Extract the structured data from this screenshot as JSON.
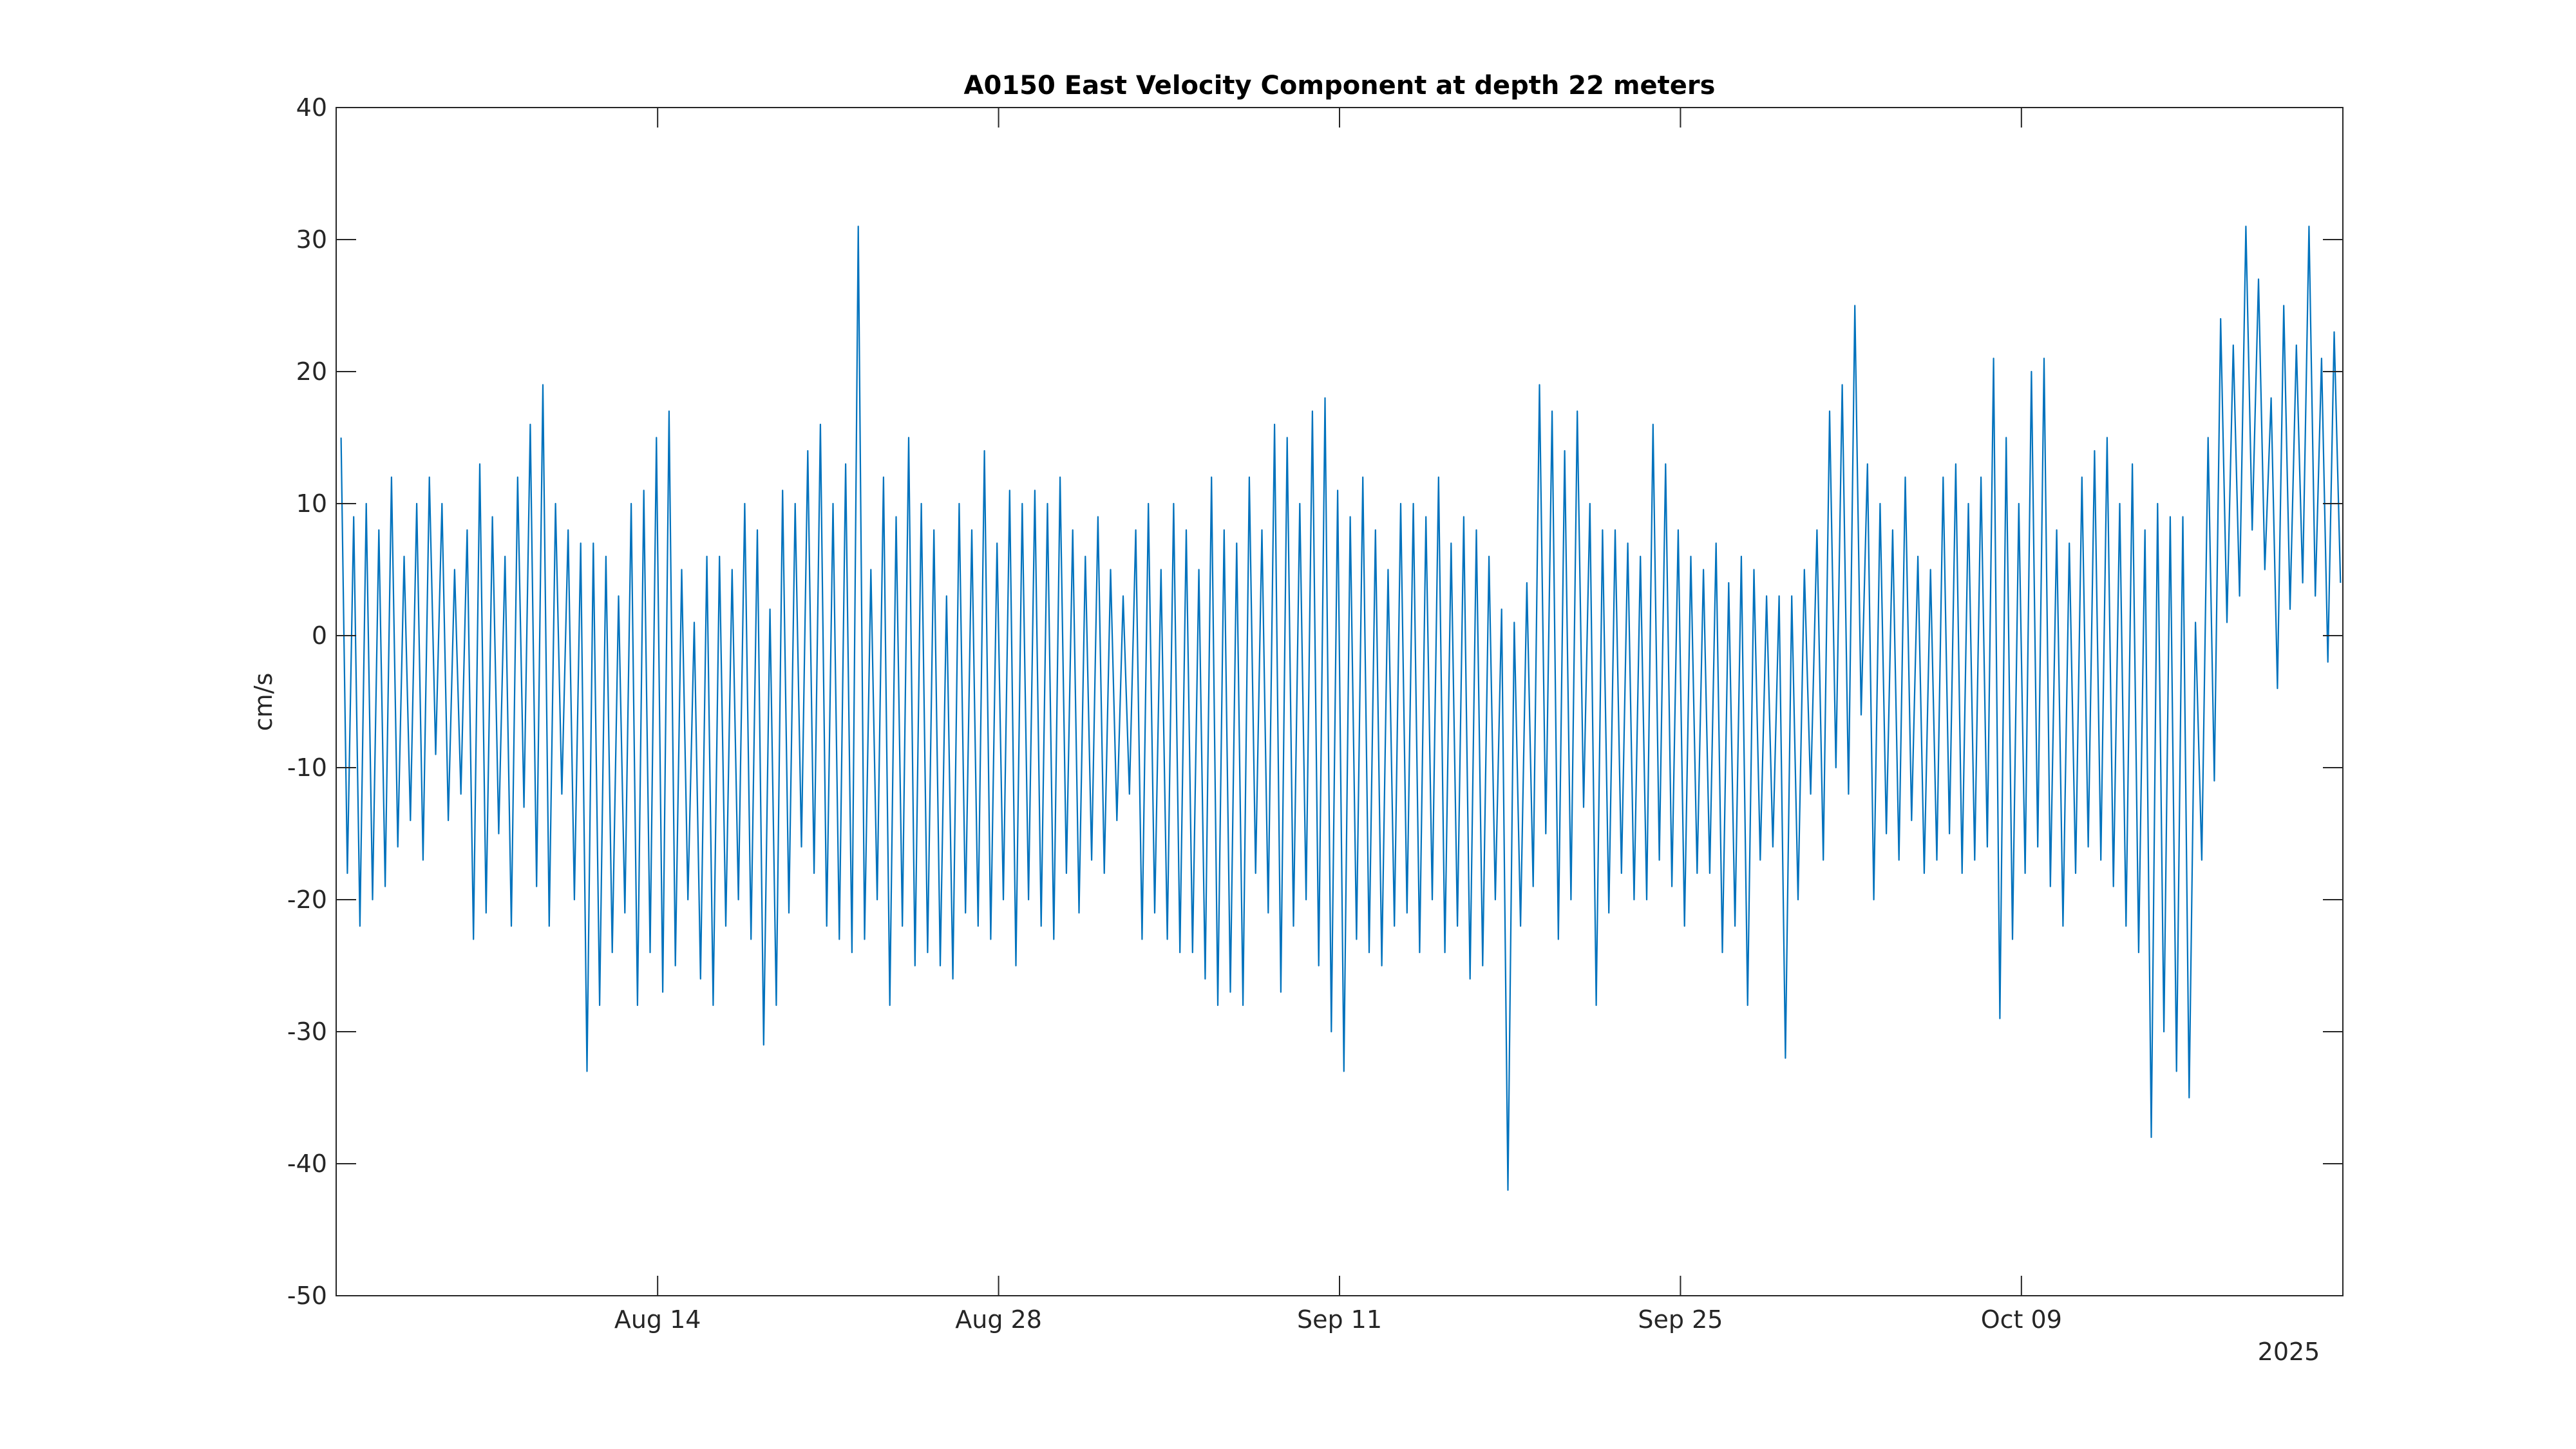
{
  "chart_data": {
    "type": "line",
    "title": "A0150 East Velocity Component at depth 22 meters",
    "xlabel": "",
    "ylabel": "cm/s",
    "x_units": "days since 2025-08-01",
    "x_secondary_label": "2025",
    "xlim": [
      -0.2,
      82.2
    ],
    "ylim": [
      -50,
      40
    ],
    "yticks": [
      -50,
      -40,
      -30,
      -20,
      -10,
      0,
      10,
      20,
      30,
      40
    ],
    "xticks": [
      {
        "value": 13,
        "label": "Aug 14"
      },
      {
        "value": 27,
        "label": "Aug 28"
      },
      {
        "value": 41,
        "label": "Sep 11"
      },
      {
        "value": 55,
        "label": "Sep 25"
      },
      {
        "value": 69,
        "label": "Oct 09"
      }
    ],
    "grid": false,
    "line_color": "#0072bd",
    "series": [
      {
        "name": "East velocity",
        "x_start": 0,
        "x_step": 0.259,
        "values": [
          15,
          -18,
          9,
          -22,
          10,
          -20,
          8,
          -19,
          12,
          -16,
          6,
          -14,
          10,
          -17,
          12,
          -9,
          10,
          -14,
          5,
          -12,
          8,
          -23,
          13,
          -21,
          9,
          -15,
          6,
          -22,
          12,
          -13,
          16,
          -19,
          19,
          -22,
          10,
          -12,
          8,
          -20,
          7,
          -33,
          7,
          -28,
          6,
          -24,
          3,
          -21,
          10,
          -28,
          11,
          -24,
          15,
          -27,
          17,
          -25,
          5,
          -20,
          1,
          -26,
          6,
          -28,
          6,
          -22,
          5,
          -20,
          10,
          -23,
          8,
          -31,
          2,
          -28,
          11,
          -21,
          10,
          -16,
          14,
          -18,
          16,
          -22,
          10,
          -23,
          13,
          -24,
          31,
          -23,
          5,
          -20,
          12,
          -28,
          9,
          -22,
          15,
          -25,
          10,
          -24,
          8,
          -25,
          3,
          -26,
          10,
          -21,
          8,
          -22,
          14,
          -23,
          7,
          -20,
          11,
          -25,
          10,
          -20,
          11,
          -22,
          10,
          -23,
          12,
          -18,
          8,
          -21,
          6,
          -17,
          9,
          -18,
          5,
          -14,
          3,
          -12,
          8,
          -23,
          10,
          -21,
          5,
          -23,
          10,
          -24,
          8,
          -24,
          5,
          -26,
          12,
          -28,
          8,
          -27,
          7,
          -28,
          12,
          -18,
          8,
          -21,
          16,
          -27,
          15,
          -22,
          10,
          -20,
          17,
          -25,
          18,
          -30,
          11,
          -33,
          9,
          -23,
          12,
          -24,
          8,
          -25,
          5,
          -22,
          10,
          -21,
          10,
          -24,
          9,
          -20,
          12,
          -24,
          7,
          -22,
          9,
          -26,
          8,
          -25,
          6,
          -20,
          2,
          -42,
          1,
          -22,
          4,
          -19,
          19,
          -15,
          17,
          -23,
          14,
          -20,
          17,
          -13,
          10,
          -28,
          8,
          -21,
          8,
          -18,
          7,
          -20,
          6,
          -20,
          16,
          -17,
          13,
          -19,
          8,
          -22,
          6,
          -18,
          5,
          -18,
          7,
          -24,
          4,
          -22,
          6,
          -28,
          5,
          -17,
          3,
          -16,
          3,
          -32,
          3,
          -20,
          5,
          -12,
          8,
          -17,
          17,
          -10,
          19,
          -12,
          25,
          -6,
          13,
          -20,
          10,
          -15,
          8,
          -17,
          12,
          -14,
          6,
          -18,
          5,
          -17,
          12,
          -15,
          13,
          -18,
          10,
          -17,
          12,
          -16,
          21,
          -29,
          15,
          -23,
          10,
          -18,
          20,
          -16,
          21,
          -19,
          8,
          -22,
          7,
          -18,
          12,
          -16,
          14,
          -17,
          15,
          -19,
          10,
          -22,
          13,
          -24,
          8,
          -38,
          10,
          -30,
          9,
          -33,
          9,
          -35,
          1,
          -17,
          15,
          -11,
          24,
          1,
          22,
          3,
          31,
          8,
          27,
          5,
          18,
          -4,
          25,
          2,
          22,
          4,
          31,
          3,
          21,
          -2,
          23,
          4
        ]
      }
    ]
  }
}
